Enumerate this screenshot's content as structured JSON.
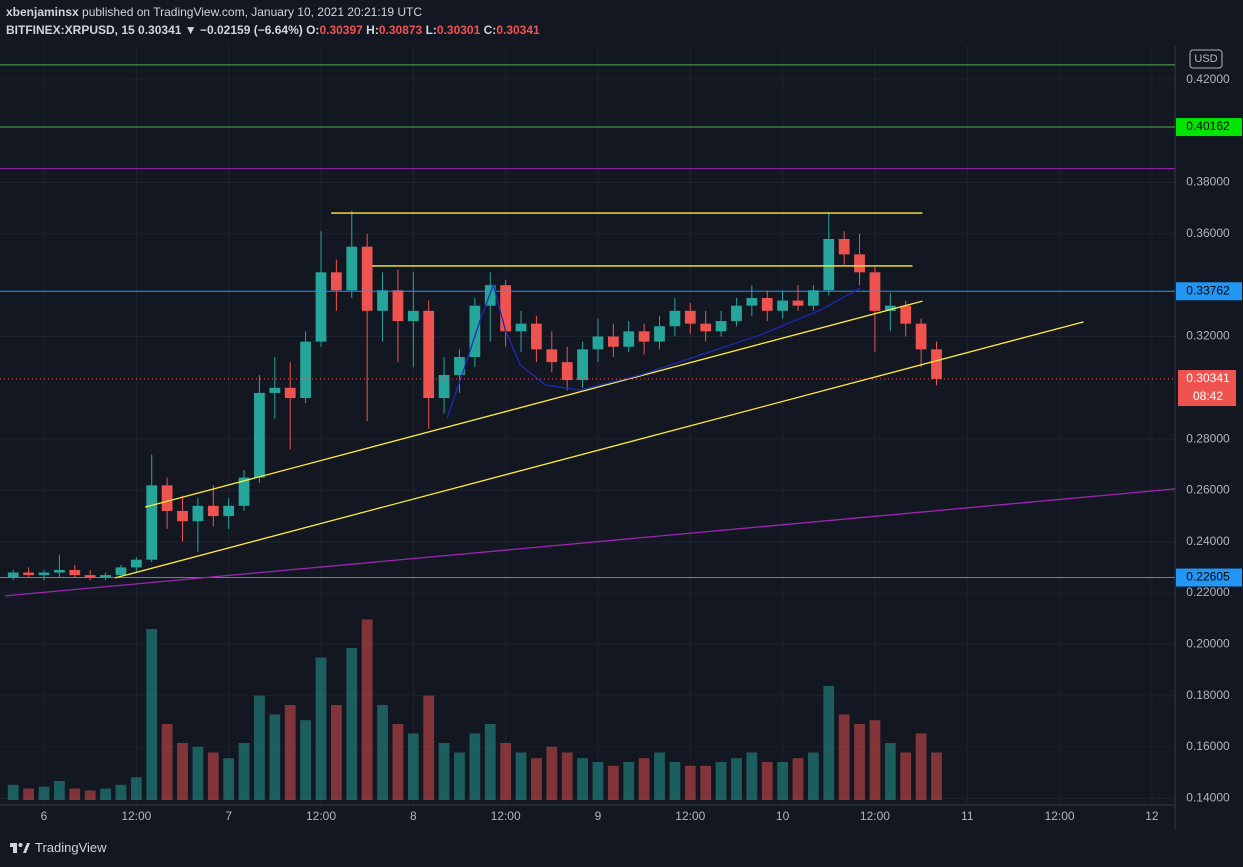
{
  "header": {
    "author": "xbenjaminsx",
    "published": " published on TradingView.com, January 10, 2021 20:21:19 UTC",
    "symbol": "BITFINEX:XRPUSD, 15",
    "last": "0.30341",
    "change": "▼ −0.02159 (−6.64%)",
    "open_label": "O:",
    "open": "0.30397",
    "high_label": "H:",
    "high": "0.30873",
    "low_label": "L:",
    "low": "0.30301",
    "close_label": "C:",
    "close": "0.30341"
  },
  "chart_data": {
    "type": "candlestick",
    "currency": "USD",
    "xlim": [
      -0.86,
      75.5
    ],
    "xticks": [
      {
        "value": 2,
        "label": "6"
      },
      {
        "value": 8,
        "label": "12:00"
      },
      {
        "value": 14,
        "label": "7"
      },
      {
        "value": 20,
        "label": "12:00"
      },
      {
        "value": 26,
        "label": "8"
      },
      {
        "value": 32,
        "label": "12:00"
      },
      {
        "value": 38,
        "label": "9"
      },
      {
        "value": 44,
        "label": "12:00"
      },
      {
        "value": 50,
        "label": "10"
      },
      {
        "value": 56,
        "label": "12:00"
      },
      {
        "value": 62,
        "label": "11"
      },
      {
        "value": 68,
        "label": "12:00"
      },
      {
        "value": 74,
        "label": "12"
      }
    ],
    "ylim": [
      0.1374,
      0.4336
    ],
    "yticks": [
      {
        "value": 0.42,
        "label": "0.42000"
      },
      {
        "value": 0.38,
        "label": "0.38000"
      },
      {
        "value": 0.36,
        "label": "0.36000"
      },
      {
        "value": 0.32,
        "label": "0.32000"
      },
      {
        "value": 0.28,
        "label": "0.28000"
      },
      {
        "value": 0.26,
        "label": "0.26000"
      },
      {
        "value": 0.24,
        "label": "0.24000"
      },
      {
        "value": 0.22,
        "label": "0.22000"
      },
      {
        "value": 0.2,
        "label": "0.20000"
      },
      {
        "value": 0.18,
        "label": "0.18000"
      },
      {
        "value": 0.16,
        "label": "0.16000"
      },
      {
        "value": 0.14,
        "label": "0.14000"
      }
    ],
    "grid": true,
    "up_color": "#26a69a",
    "down_color": "#ef5350",
    "ohlc": {
      "open": [
        0.226,
        0.228,
        0.227,
        0.228,
        0.229,
        0.227,
        0.226,
        0.227,
        0.23,
        0.233,
        0.262,
        0.252,
        0.248,
        0.254,
        0.25,
        0.254,
        0.265,
        0.298,
        0.3,
        0.296,
        0.318,
        0.345,
        0.338,
        0.355,
        0.33,
        0.338,
        0.326,
        0.33,
        0.296,
        0.305,
        0.312,
        0.332,
        0.34,
        0.322,
        0.325,
        0.315,
        0.31,
        0.303,
        0.315,
        0.32,
        0.316,
        0.322,
        0.318,
        0.324,
        0.33,
        0.325,
        0.322,
        0.326,
        0.332,
        0.335,
        0.33,
        0.334,
        0.332,
        0.338,
        0.358,
        0.352,
        0.345,
        0.33,
        0.332,
        0.325,
        0.315
      ],
      "high": [
        0.229,
        0.23,
        0.229,
        0.235,
        0.231,
        0.229,
        0.228,
        0.231,
        0.234,
        0.274,
        0.265,
        0.258,
        0.257,
        0.262,
        0.257,
        0.268,
        0.305,
        0.312,
        0.31,
        0.322,
        0.361,
        0.35,
        0.369,
        0.36,
        0.345,
        0.346,
        0.345,
        0.334,
        0.312,
        0.315,
        0.335,
        0.345,
        0.342,
        0.33,
        0.328,
        0.322,
        0.316,
        0.318,
        0.327,
        0.325,
        0.326,
        0.325,
        0.328,
        0.335,
        0.333,
        0.33,
        0.33,
        0.335,
        0.34,
        0.338,
        0.338,
        0.34,
        0.34,
        0.368,
        0.361,
        0.36,
        0.347,
        0.337,
        0.334,
        0.327,
        0.318
      ],
      "low": [
        0.225,
        0.226,
        0.225,
        0.226,
        0.226,
        0.225,
        0.225,
        0.226,
        0.228,
        0.232,
        0.245,
        0.24,
        0.236,
        0.246,
        0.245,
        0.252,
        0.263,
        0.288,
        0.276,
        0.294,
        0.316,
        0.33,
        0.335,
        0.287,
        0.318,
        0.31,
        0.308,
        0.284,
        0.29,
        0.298,
        0.308,
        0.318,
        0.316,
        0.314,
        0.31,
        0.306,
        0.299,
        0.3,
        0.31,
        0.312,
        0.314,
        0.313,
        0.315,
        0.32,
        0.321,
        0.318,
        0.32,
        0.324,
        0.328,
        0.326,
        0.327,
        0.33,
        0.33,
        0.336,
        0.348,
        0.34,
        0.314,
        0.322,
        0.32,
        0.308,
        0.301
      ],
      "close": [
        0.228,
        0.227,
        0.228,
        0.229,
        0.227,
        0.226,
        0.227,
        0.23,
        0.233,
        0.262,
        0.252,
        0.248,
        0.254,
        0.25,
        0.254,
        0.265,
        0.298,
        0.3,
        0.296,
        0.318,
        0.345,
        0.338,
        0.355,
        0.33,
        0.338,
        0.326,
        0.33,
        0.296,
        0.305,
        0.312,
        0.332,
        0.34,
        0.322,
        0.325,
        0.315,
        0.31,
        0.303,
        0.315,
        0.32,
        0.316,
        0.322,
        0.318,
        0.324,
        0.33,
        0.325,
        0.322,
        0.326,
        0.332,
        0.335,
        0.33,
        0.334,
        0.332,
        0.338,
        0.358,
        0.352,
        0.345,
        0.33,
        0.332,
        0.325,
        0.315,
        0.30341
      ]
    },
    "vlim": [
      0,
      100
    ],
    "volume": [
      8,
      6,
      7,
      10,
      6,
      5,
      6,
      8,
      12,
      90,
      40,
      30,
      28,
      25,
      22,
      30,
      55,
      45,
      50,
      42,
      75,
      50,
      80,
      95,
      50,
      40,
      35,
      55,
      30,
      25,
      35,
      40,
      30,
      25,
      22,
      28,
      25,
      22,
      20,
      18,
      20,
      22,
      25,
      20,
      18,
      18,
      20,
      22,
      25,
      20,
      20,
      22,
      25,
      60,
      45,
      40,
      42,
      30,
      25,
      35,
      25
    ],
    "price_lines": [
      {
        "value": 0.42585,
        "color": "#4caf50"
      },
      {
        "value": 0.40162,
        "color": "#4caf50",
        "label_color": "#00e600"
      },
      {
        "value": 0.3854,
        "color": "#9c27b0"
      },
      {
        "value": 0.33762,
        "color": "#2196f3",
        "label_color": "#2196f3"
      },
      {
        "value": 0.22605,
        "color": "#2196f3",
        "label_color": "#2196f3"
      }
    ],
    "last_price": 0.30341,
    "last_color": "#ef5350",
    "countdown": "08:42",
    "trendlines": [
      {
        "color": "#ffeb3b",
        "points": [
          [
            20.66,
            0.3681
          ],
          [
            59.09,
            0.3681
          ]
        ]
      },
      {
        "color": "#ffeb3b",
        "points": [
          [
            23.33,
            0.3475
          ],
          [
            58.44,
            0.3475
          ]
        ]
      },
      {
        "color": "#ffeb3b",
        "points": [
          [
            8.57,
            0.2535
          ],
          [
            59.09,
            0.3338
          ]
        ]
      },
      {
        "color": "#ffeb3b",
        "points": [
          [
            6.62,
            0.2259
          ],
          [
            69.56,
            0.3257
          ]
        ]
      },
      {
        "color": "#9c27b0",
        "points": [
          [
            -0.53,
            0.2189
          ],
          [
            75.5,
            0.2606
          ]
        ]
      },
      {
        "color": "#1a2bb8",
        "points": [
          [
            28.2,
            0.2882
          ],
          [
            29.05,
            0.303
          ],
          [
            30.35,
            0.3264
          ],
          [
            31.2,
            0.3401
          ],
          [
            31.98,
            0.3225
          ],
          [
            32.95,
            0.3089
          ],
          [
            34.58,
            0.3011
          ],
          [
            36.85,
            0.2991
          ],
          [
            40.76,
            0.305
          ],
          [
            44.66,
            0.3128
          ],
          [
            48.56,
            0.3206
          ],
          [
            52.46,
            0.3303
          ],
          [
            55.06,
            0.3389
          ]
        ]
      }
    ]
  },
  "footer": {
    "brand": "TradingView"
  }
}
